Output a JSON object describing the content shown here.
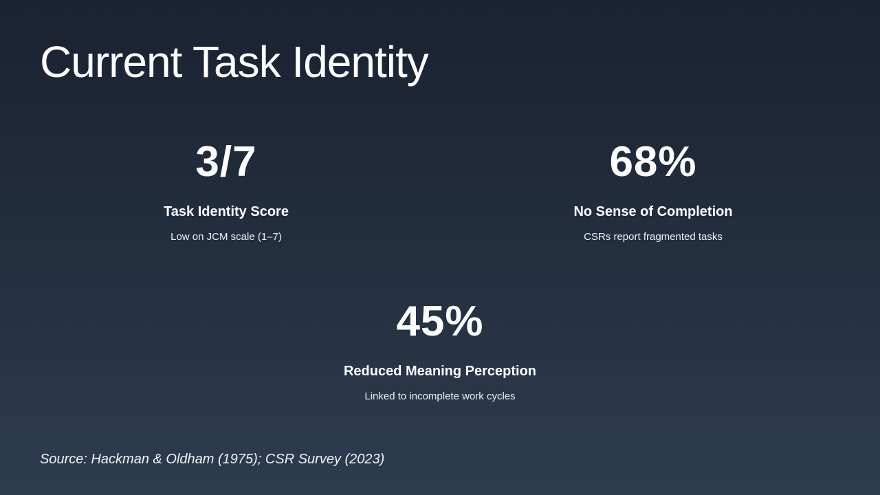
{
  "slide": {
    "title": "Current Task Identity",
    "stats": [
      {
        "value": "3/7",
        "label": "Task Identity Score",
        "description": "Low on JCM scale (1–7)"
      },
      {
        "value": "68%",
        "label": "No Sense of Completion",
        "description": "CSRs report fragmented tasks"
      },
      {
        "value": "45%",
        "label": "Reduced Meaning Perception",
        "description": "Linked to incomplete work cycles"
      }
    ],
    "source": "Source: Hackman & Oldham (1975); CSR Survey (2023)"
  }
}
